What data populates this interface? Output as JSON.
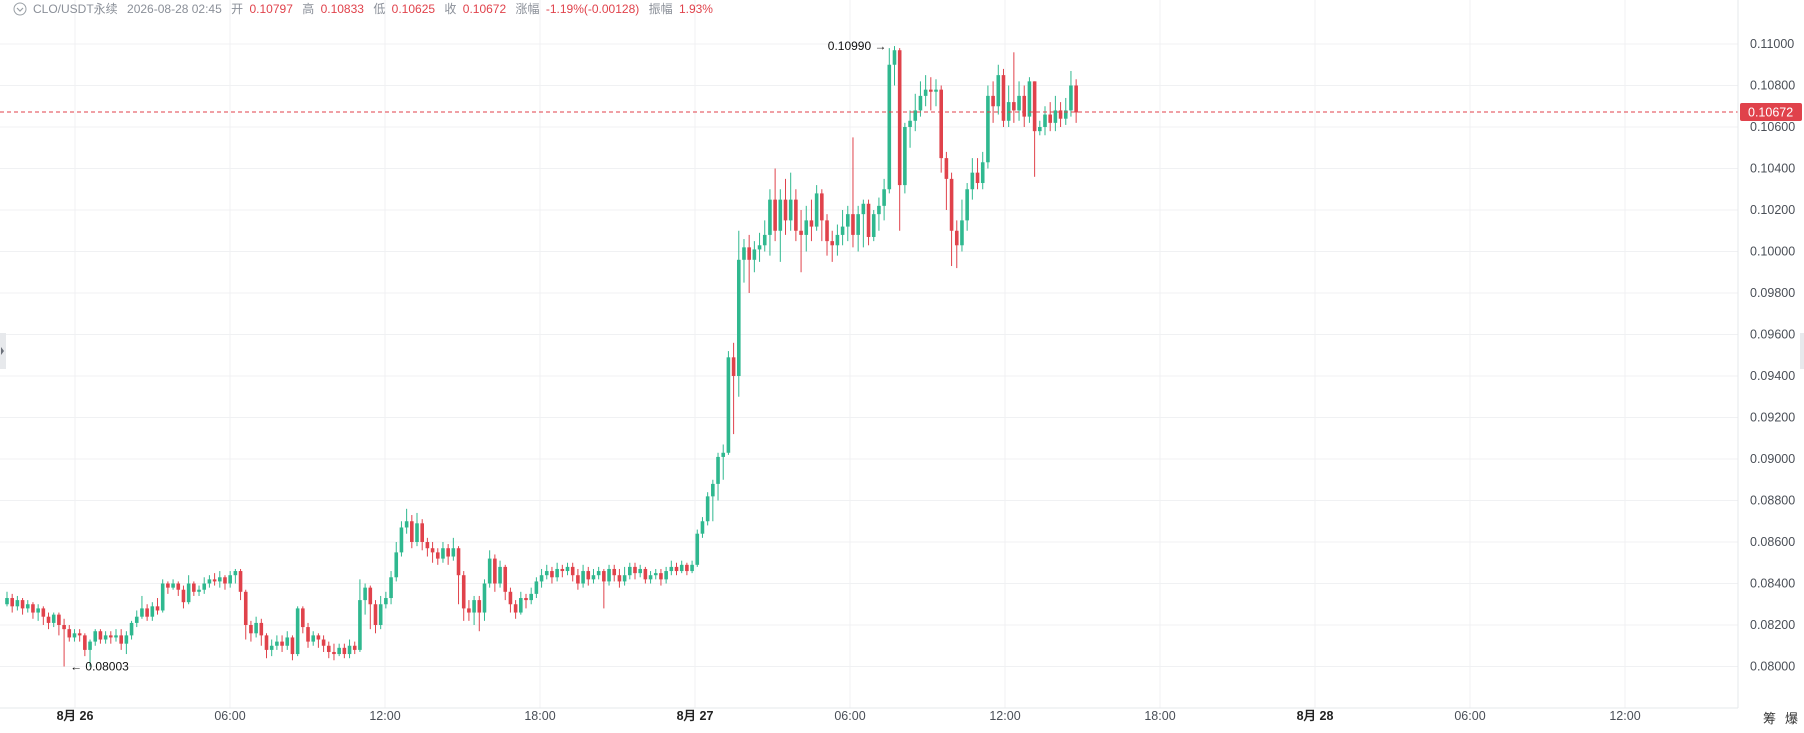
{
  "header": {
    "symbol": "CLO/USDT永续",
    "datetime": "2026-08-28 02:45",
    "open_label": "开",
    "open_value": "0.10797",
    "high_label": "高",
    "high_value": "0.10833",
    "low_label": "低",
    "low_value": "0.10625",
    "close_label": "收",
    "close_value": "0.10672",
    "change_label": "涨幅",
    "change_value": "-1.19%(-0.00128)",
    "amplitude_label": "振幅",
    "amplitude_value": "1.93%"
  },
  "side_tools": {
    "tool_1": "筹",
    "tool_2": "爆"
  },
  "colors": {
    "up": "#2fb88f",
    "down": "#e0424b",
    "grid": "#f0f1f3",
    "axis_text": "#4a4f57",
    "price_tag_bg": "#e0424b"
  },
  "chart_data": {
    "type": "candlestick",
    "interval_hours": 1,
    "y_ticks": [
      "0.11000",
      "0.10800",
      "0.10600",
      "0.10400",
      "0.10200",
      "0.10000",
      "0.09800",
      "0.09600",
      "0.09400",
      "0.09200",
      "0.09000",
      "0.08800",
      "0.08600",
      "0.08400",
      "0.08200",
      "0.08000"
    ],
    "ylim": [
      0.079,
      0.11
    ],
    "x_ticks": [
      {
        "label": "8月 26",
        "bold": true
      },
      {
        "label": "06:00",
        "bold": false
      },
      {
        "label": "12:00",
        "bold": false
      },
      {
        "label": "18:00",
        "bold": false
      },
      {
        "label": "8月 27",
        "bold": true
      },
      {
        "label": "06:00",
        "bold": false
      },
      {
        "label": "12:00",
        "bold": false
      },
      {
        "label": "18:00",
        "bold": false
      },
      {
        "label": "8月 28",
        "bold": true
      },
      {
        "label": "06:00",
        "bold": false
      },
      {
        "label": "12:00",
        "bold": false
      }
    ],
    "last_price": "0.10672",
    "high_marker": "0.10990",
    "low_marker": "0.08003",
    "candles": [
      [
        0.083,
        0.0833,
        0.0836,
        0.0829
      ],
      [
        0.0833,
        0.0829,
        0.0835,
        0.0826
      ],
      [
        0.0829,
        0.0832,
        0.0834,
        0.0827
      ],
      [
        0.0832,
        0.0828,
        0.0833,
        0.0825
      ],
      [
        0.0828,
        0.083,
        0.0832,
        0.0826
      ],
      [
        0.083,
        0.0826,
        0.0831,
        0.0823
      ],
      [
        0.0826,
        0.0828,
        0.083,
        0.0822
      ],
      [
        0.0828,
        0.0824,
        0.0829,
        0.082
      ],
      [
        0.0824,
        0.0821,
        0.0826,
        0.0818
      ],
      [
        0.0821,
        0.0825,
        0.0826,
        0.0819
      ],
      [
        0.0825,
        0.082,
        0.0826,
        0.0815
      ],
      [
        0.082,
        0.0818,
        0.0823,
        0.08
      ],
      [
        0.0818,
        0.0814,
        0.082,
        0.0812
      ],
      [
        0.0814,
        0.0816,
        0.0818,
        0.0812
      ],
      [
        0.0816,
        0.0815,
        0.0818,
        0.0812
      ],
      [
        0.0815,
        0.0808,
        0.0816,
        0.0805
      ],
      [
        0.0808,
        0.0812,
        0.0813,
        0.08
      ],
      [
        0.0812,
        0.0817,
        0.0818,
        0.081
      ],
      [
        0.0817,
        0.0813,
        0.0818,
        0.0811
      ],
      [
        0.0813,
        0.0815,
        0.0817,
        0.0811
      ],
      [
        0.0815,
        0.0814,
        0.0817,
        0.0811
      ],
      [
        0.0814,
        0.0815,
        0.0818,
        0.0812
      ],
      [
        0.0815,
        0.0811,
        0.0818,
        0.0808
      ],
      [
        0.0811,
        0.0815,
        0.0817,
        0.0806
      ],
      [
        0.0815,
        0.0821,
        0.0822,
        0.0813
      ],
      [
        0.0821,
        0.0824,
        0.0827,
        0.0819
      ],
      [
        0.0824,
        0.0828,
        0.0834,
        0.0823
      ],
      [
        0.0828,
        0.0824,
        0.083,
        0.0822
      ],
      [
        0.0824,
        0.0829,
        0.0831,
        0.0822
      ],
      [
        0.0829,
        0.0827,
        0.0833,
        0.0825
      ],
      [
        0.0827,
        0.084,
        0.0842,
        0.0826
      ],
      [
        0.084,
        0.0838,
        0.0841,
        0.0835
      ],
      [
        0.0838,
        0.084,
        0.0842,
        0.0837
      ],
      [
        0.084,
        0.0837,
        0.0841,
        0.0834
      ],
      [
        0.0837,
        0.0831,
        0.0839,
        0.0828
      ],
      [
        0.0831,
        0.084,
        0.0844,
        0.083
      ],
      [
        0.084,
        0.0836,
        0.0841,
        0.0834
      ],
      [
        0.0836,
        0.0837,
        0.0839,
        0.0834
      ],
      [
        0.0837,
        0.084,
        0.0843,
        0.0835
      ],
      [
        0.084,
        0.0842,
        0.0844,
        0.0838
      ],
      [
        0.0842,
        0.0841,
        0.0845,
        0.0839
      ],
      [
        0.0841,
        0.0843,
        0.0846,
        0.0838
      ],
      [
        0.0843,
        0.084,
        0.0844,
        0.0837
      ],
      [
        0.084,
        0.0844,
        0.0846,
        0.0838
      ],
      [
        0.0844,
        0.0846,
        0.0847,
        0.084
      ],
      [
        0.0846,
        0.0836,
        0.0847,
        0.0832
      ],
      [
        0.0836,
        0.082,
        0.0837,
        0.0813
      ],
      [
        0.082,
        0.0816,
        0.0822,
        0.0812
      ],
      [
        0.0816,
        0.0821,
        0.0824,
        0.0814
      ],
      [
        0.0821,
        0.0815,
        0.0823,
        0.081
      ],
      [
        0.0815,
        0.0808,
        0.0816,
        0.0804
      ],
      [
        0.0808,
        0.081,
        0.0813,
        0.0805
      ],
      [
        0.081,
        0.0812,
        0.0815,
        0.0808
      ],
      [
        0.0812,
        0.081,
        0.0815,
        0.0807
      ],
      [
        0.081,
        0.0814,
        0.0817,
        0.0808
      ],
      [
        0.0814,
        0.0806,
        0.0815,
        0.0803
      ],
      [
        0.0806,
        0.0828,
        0.0829,
        0.0805
      ],
      [
        0.0828,
        0.0819,
        0.0829,
        0.0816
      ],
      [
        0.0819,
        0.0812,
        0.0821,
        0.0809
      ],
      [
        0.0812,
        0.0815,
        0.0817,
        0.081
      ],
      [
        0.0815,
        0.0813,
        0.0816,
        0.0809
      ],
      [
        0.0813,
        0.081,
        0.0815,
        0.0807
      ],
      [
        0.081,
        0.0807,
        0.0812,
        0.0804
      ],
      [
        0.0807,
        0.0806,
        0.0811,
        0.0803
      ],
      [
        0.0806,
        0.0809,
        0.0811,
        0.0805
      ],
      [
        0.0809,
        0.0806,
        0.0811,
        0.0804
      ],
      [
        0.0806,
        0.081,
        0.0813,
        0.0804
      ],
      [
        0.081,
        0.0808,
        0.0812,
        0.0806
      ],
      [
        0.0808,
        0.0832,
        0.0842,
        0.0807
      ],
      [
        0.0832,
        0.0838,
        0.084,
        0.0825
      ],
      [
        0.0838,
        0.083,
        0.0839,
        0.0818
      ],
      [
        0.083,
        0.082,
        0.0832,
        0.0816
      ],
      [
        0.082,
        0.083,
        0.0834,
        0.0818
      ],
      [
        0.083,
        0.0833,
        0.0836,
        0.0828
      ],
      [
        0.0833,
        0.0843,
        0.0846,
        0.083
      ],
      [
        0.0843,
        0.0855,
        0.086,
        0.0841
      ],
      [
        0.0855,
        0.0867,
        0.087,
        0.0853
      ],
      [
        0.0867,
        0.087,
        0.0876,
        0.0864
      ],
      [
        0.087,
        0.086,
        0.0873,
        0.0857
      ],
      [
        0.086,
        0.0869,
        0.0874,
        0.0858
      ],
      [
        0.0869,
        0.086,
        0.0871,
        0.0856
      ],
      [
        0.086,
        0.0857,
        0.0862,
        0.0853
      ],
      [
        0.0857,
        0.0855,
        0.086,
        0.085
      ],
      [
        0.0855,
        0.0852,
        0.0857,
        0.0849
      ],
      [
        0.0852,
        0.0857,
        0.086,
        0.085
      ],
      [
        0.0857,
        0.0853,
        0.0859,
        0.0849
      ],
      [
        0.0853,
        0.0857,
        0.0862,
        0.0851
      ],
      [
        0.0857,
        0.0844,
        0.0858,
        0.083
      ],
      [
        0.0844,
        0.0828,
        0.0846,
        0.0822
      ],
      [
        0.0828,
        0.0826,
        0.0832,
        0.0822
      ],
      [
        0.0826,
        0.0832,
        0.0834,
        0.082
      ],
      [
        0.0832,
        0.0826,
        0.0834,
        0.0817
      ],
      [
        0.0826,
        0.084,
        0.0842,
        0.0822
      ],
      [
        0.084,
        0.0852,
        0.0856,
        0.0838
      ],
      [
        0.0852,
        0.084,
        0.0854,
        0.0836
      ],
      [
        0.084,
        0.0848,
        0.0851,
        0.0838
      ],
      [
        0.0848,
        0.0836,
        0.0849,
        0.0832
      ],
      [
        0.0836,
        0.083,
        0.0838,
        0.0826
      ],
      [
        0.083,
        0.0826,
        0.0832,
        0.0823
      ],
      [
        0.0826,
        0.0833,
        0.0836,
        0.0825
      ],
      [
        0.0833,
        0.0832,
        0.0835,
        0.0828
      ],
      [
        0.0832,
        0.0835,
        0.0838,
        0.083
      ],
      [
        0.0835,
        0.0841,
        0.0843,
        0.0833
      ],
      [
        0.0841,
        0.0844,
        0.0847,
        0.0838
      ],
      [
        0.0844,
        0.0846,
        0.0849,
        0.0842
      ],
      [
        0.0846,
        0.0843,
        0.0848,
        0.084
      ],
      [
        0.0843,
        0.0847,
        0.085,
        0.0841
      ],
      [
        0.0847,
        0.0846,
        0.0849,
        0.0843
      ],
      [
        0.0846,
        0.0848,
        0.085,
        0.0844
      ],
      [
        0.0848,
        0.0844,
        0.085,
        0.0841
      ],
      [
        0.0844,
        0.084,
        0.0847,
        0.0837
      ],
      [
        0.084,
        0.0846,
        0.0849,
        0.0838
      ],
      [
        0.0846,
        0.0842,
        0.0848,
        0.0839
      ],
      [
        0.0842,
        0.0844,
        0.0847,
        0.084
      ],
      [
        0.0844,
        0.0846,
        0.0848,
        0.0842
      ],
      [
        0.0846,
        0.0841,
        0.0847,
        0.0828
      ],
      [
        0.0841,
        0.0847,
        0.0849,
        0.0839
      ],
      [
        0.0847,
        0.0844,
        0.0849,
        0.0841
      ],
      [
        0.0844,
        0.0841,
        0.0847,
        0.0838
      ],
      [
        0.0841,
        0.0844,
        0.0848,
        0.0839
      ],
      [
        0.0844,
        0.0848,
        0.085,
        0.0842
      ],
      [
        0.0848,
        0.0845,
        0.085,
        0.0842
      ],
      [
        0.0845,
        0.0847,
        0.0849,
        0.0843
      ],
      [
        0.0847,
        0.0842,
        0.0848,
        0.084
      ],
      [
        0.0842,
        0.0844,
        0.0846,
        0.084
      ],
      [
        0.0844,
        0.0845,
        0.0847,
        0.0842
      ],
      [
        0.0845,
        0.0842,
        0.0847,
        0.0839
      ],
      [
        0.0842,
        0.0846,
        0.0848,
        0.084
      ],
      [
        0.0846,
        0.0848,
        0.0851,
        0.0844
      ],
      [
        0.0848,
        0.0846,
        0.085,
        0.0844
      ],
      [
        0.0846,
        0.0849,
        0.0851,
        0.0845
      ],
      [
        0.0849,
        0.0846,
        0.085,
        0.0844
      ],
      [
        0.0846,
        0.0849,
        0.0851,
        0.0845
      ],
      [
        0.0849,
        0.0864,
        0.0866,
        0.0848
      ],
      [
        0.0864,
        0.087,
        0.0872,
        0.0862
      ],
      [
        0.087,
        0.0882,
        0.0884,
        0.0868
      ],
      [
        0.0882,
        0.0888,
        0.089,
        0.087
      ],
      [
        0.0888,
        0.0901,
        0.0903,
        0.088
      ],
      [
        0.0901,
        0.0903,
        0.0907,
        0.089
      ],
      [
        0.0903,
        0.0949,
        0.0952,
        0.0902
      ],
      [
        0.0949,
        0.094,
        0.0956,
        0.0912
      ],
      [
        0.094,
        0.0996,
        0.101,
        0.093
      ],
      [
        0.0996,
        0.1002,
        0.1006,
        0.0985
      ],
      [
        0.1002,
        0.0996,
        0.1008,
        0.098
      ],
      [
        0.0996,
        0.1001,
        0.1005,
        0.099
      ],
      [
        0.1001,
        0.1003,
        0.1009,
        0.0995
      ],
      [
        0.1003,
        0.1008,
        0.1015,
        0.1
      ],
      [
        0.1008,
        0.1025,
        0.103,
        0.0998
      ],
      [
        0.1025,
        0.101,
        0.104,
        0.1005
      ],
      [
        0.101,
        0.1025,
        0.103,
        0.0995
      ],
      [
        0.1025,
        0.1015,
        0.1035,
        0.1008
      ],
      [
        0.1015,
        0.1025,
        0.1038,
        0.101
      ],
      [
        0.1025,
        0.101,
        0.103,
        0.1005
      ],
      [
        0.101,
        0.1008,
        0.102,
        0.099
      ],
      [
        0.1008,
        0.1015,
        0.1022,
        0.1
      ],
      [
        0.1015,
        0.1012,
        0.1025,
        0.1005
      ],
      [
        0.1012,
        0.1028,
        0.1032,
        0.101
      ],
      [
        0.1028,
        0.1015,
        0.103,
        0.1005
      ],
      [
        0.1015,
        0.1005,
        0.1018,
        0.0998
      ],
      [
        0.1005,
        0.1003,
        0.101,
        0.0995
      ],
      [
        0.1003,
        0.1008,
        0.1013,
        0.0998
      ],
      [
        0.1008,
        0.1012,
        0.102,
        0.1003
      ],
      [
        0.1012,
        0.1018,
        0.1022,
        0.1005
      ],
      [
        0.1018,
        0.1008,
        0.1055,
        0.1002
      ],
      [
        0.1008,
        0.1018,
        0.1022,
        0.1
      ],
      [
        0.1018,
        0.1023,
        0.1025,
        0.1002
      ],
      [
        0.1023,
        0.1007,
        0.1025,
        0.1003
      ],
      [
        0.1007,
        0.1018,
        0.102,
        0.1005
      ],
      [
        0.1018,
        0.1022,
        0.1026,
        0.101
      ],
      [
        0.1022,
        0.103,
        0.1035,
        0.1015
      ],
      [
        0.103,
        0.109,
        0.1098,
        0.1028
      ],
      [
        0.109,
        0.1097,
        0.1099,
        0.108
      ],
      [
        0.1097,
        0.1032,
        0.1098,
        0.101
      ],
      [
        0.1032,
        0.106,
        0.1062,
        0.1028
      ],
      [
        0.106,
        0.1063,
        0.1068,
        0.105
      ],
      [
        0.1063,
        0.1068,
        0.1076,
        0.1058
      ],
      [
        0.1068,
        0.1075,
        0.1082,
        0.1065
      ],
      [
        0.1075,
        0.1078,
        0.1085,
        0.107
      ],
      [
        0.1078,
        0.1077,
        0.1084,
        0.1068
      ],
      [
        0.1077,
        0.1078,
        0.1083,
        0.107
      ],
      [
        0.1078,
        0.1045,
        0.108,
        0.1038
      ],
      [
        0.1045,
        0.1035,
        0.1048,
        0.102
      ],
      [
        0.1035,
        0.101,
        0.1038,
        0.0993
      ],
      [
        0.101,
        0.1003,
        0.1015,
        0.0992
      ],
      [
        0.1003,
        0.1015,
        0.1025,
        0.1
      ],
      [
        0.1015,
        0.103,
        0.1033,
        0.101
      ],
      [
        0.103,
        0.1038,
        0.1045,
        0.1025
      ],
      [
        0.1038,
        0.1033,
        0.1045,
        0.103
      ],
      [
        0.1033,
        0.1043,
        0.1048,
        0.103
      ],
      [
        0.1043,
        0.1075,
        0.108,
        0.104
      ],
      [
        0.1075,
        0.107,
        0.1082,
        0.1062
      ],
      [
        0.107,
        0.1085,
        0.109,
        0.1066
      ],
      [
        0.1085,
        0.1063,
        0.1088,
        0.106
      ],
      [
        0.1063,
        0.1072,
        0.108,
        0.106
      ],
      [
        0.1072,
        0.1068,
        0.1096,
        0.1062
      ],
      [
        0.1068,
        0.1075,
        0.1082,
        0.1063
      ],
      [
        0.1075,
        0.1065,
        0.108,
        0.106
      ],
      [
        0.1065,
        0.1082,
        0.1084,
        0.1062
      ],
      [
        0.1082,
        0.1058,
        0.1082,
        0.1036
      ],
      [
        0.1058,
        0.106,
        0.1063,
        0.1056
      ],
      [
        0.106,
        0.1066,
        0.107,
        0.1056
      ],
      [
        0.1066,
        0.1062,
        0.1072,
        0.1058
      ],
      [
        0.1062,
        0.1068,
        0.1075,
        0.1058
      ],
      [
        0.1068,
        0.1064,
        0.1072,
        0.106
      ],
      [
        0.1064,
        0.1068,
        0.1074,
        0.1061
      ],
      [
        0.1068,
        0.108,
        0.1087,
        0.1065
      ],
      [
        0.108,
        0.1067,
        0.1083,
        0.1062
      ]
    ]
  }
}
